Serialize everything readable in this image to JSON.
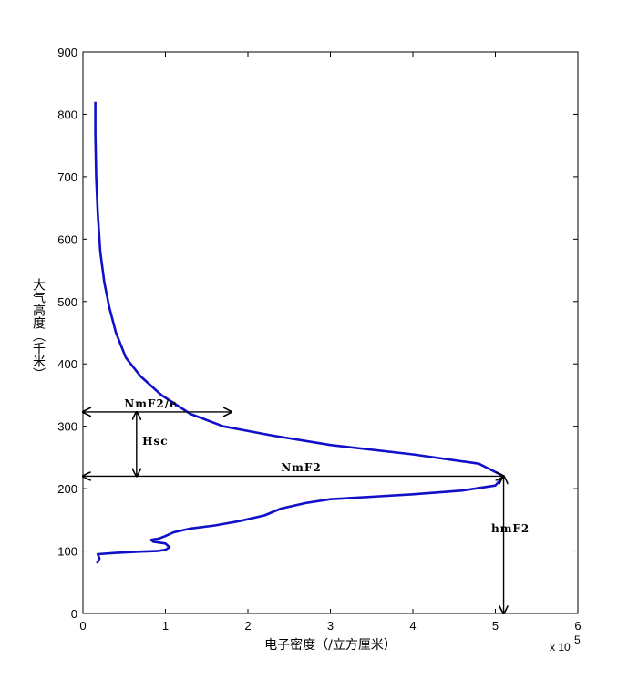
{
  "chart_data": {
    "type": "line",
    "xlabel": "电子密度（/立方厘米）",
    "ylabel": "大气高度（千米）",
    "x_multiplier": "x 10",
    "x_multiplier_exp": "5",
    "xlim": [
      0,
      6
    ],
    "ylim": [
      0,
      900
    ],
    "xticks": [
      0,
      1,
      2,
      3,
      4,
      5,
      6
    ],
    "yticks": [
      0,
      100,
      200,
      300,
      400,
      500,
      600,
      700,
      800,
      900
    ],
    "grid": false,
    "series": [
      {
        "color": "#1010c8",
        "x": [
          0.17,
          0.2,
          0.18,
          0.4,
          0.7,
          0.9,
          1.0,
          1.05,
          1.0,
          0.85,
          0.83,
          0.92,
          1.0,
          1.1,
          1.3,
          1.6,
          1.9,
          2.2,
          2.4,
          2.7,
          3.0,
          3.5,
          4.0,
          4.6,
          5.0,
          5.1,
          4.8,
          4.0,
          3.0,
          2.3,
          1.7,
          1.3,
          0.95,
          0.7,
          0.52,
          0.4,
          0.32,
          0.26,
          0.21,
          0.18,
          0.16,
          0.15,
          0.15
        ],
        "y": [
          80,
          88,
          95,
          97,
          99,
          100,
          102,
          106,
          112,
          115,
          118,
          120,
          124,
          130,
          136,
          141,
          148,
          157,
          168,
          177,
          183,
          187,
          191,
          197,
          205,
          220,
          240,
          255,
          270,
          285,
          300,
          320,
          350,
          380,
          410,
          450,
          490,
          530,
          580,
          640,
          700,
          770,
          820
        ]
      }
    ],
    "annotations": [
      {
        "text": "NmF2/e",
        "at": [
          0.5,
          330
        ]
      },
      {
        "text": "Hsc",
        "at": [
          0.72,
          270
        ]
      },
      {
        "text": "NmF2",
        "at": [
          2.4,
          228
        ]
      },
      {
        "text": "hmF2",
        "at": [
          4.95,
          130
        ]
      }
    ],
    "arrows": [
      {
        "name": "nmf2-e-arrow",
        "from": [
          0,
          323
        ],
        "to": [
          1.8,
          323
        ]
      },
      {
        "name": "hsc-arrow",
        "from": [
          0.65,
          323
        ],
        "to": [
          0.65,
          220
        ]
      },
      {
        "name": "nmf2-arrow",
        "from": [
          0,
          220
        ],
        "to": [
          5.1,
          220
        ]
      },
      {
        "name": "hmf2-arrow",
        "from": [
          5.1,
          220
        ],
        "to": [
          5.1,
          0
        ]
      }
    ]
  }
}
